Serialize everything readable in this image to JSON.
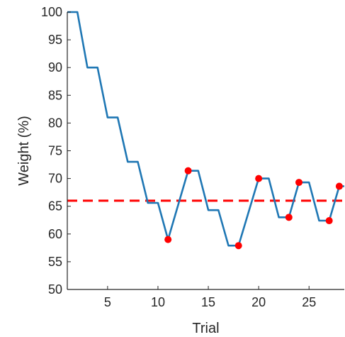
{
  "chart_data": {
    "type": "line",
    "xlabel": "Trial",
    "ylabel": "Weight (%)",
    "xlim": [
      1,
      28.5
    ],
    "ylim": [
      50,
      100
    ],
    "xticks": [
      5,
      10,
      15,
      20,
      25
    ],
    "yticks": [
      50,
      55,
      60,
      65,
      70,
      75,
      80,
      85,
      90,
      95,
      100
    ],
    "grid": false,
    "series": [
      {
        "color": "#1f77b4",
        "style": "solid-step",
        "points": [
          [
            1.0,
            100
          ],
          [
            2.0,
            100
          ],
          [
            3.0,
            90
          ],
          [
            4.0,
            90
          ],
          [
            5.0,
            81
          ],
          [
            6.0,
            81
          ],
          [
            7.0,
            73
          ],
          [
            8.0,
            73
          ],
          [
            9.0,
            65.6
          ],
          [
            10.0,
            65.6
          ],
          [
            11.0,
            59
          ],
          [
            13.0,
            71.4
          ],
          [
            14.0,
            71.4
          ],
          [
            15.0,
            64.3
          ],
          [
            16.0,
            64.3
          ],
          [
            17.0,
            57.9
          ],
          [
            18.0,
            57.9
          ],
          [
            20.0,
            70
          ],
          [
            21.0,
            70
          ],
          [
            22.0,
            63
          ],
          [
            23.0,
            63
          ],
          [
            24.0,
            69.3
          ],
          [
            25.0,
            69.3
          ],
          [
            26.0,
            62.4
          ],
          [
            27.0,
            62.4
          ],
          [
            28.0,
            68.6
          ],
          [
            28.5,
            68.6
          ]
        ]
      }
    ],
    "reversal_points": {
      "color": "#ff0000",
      "points": [
        [
          11,
          59
        ],
        [
          13,
          71.4
        ],
        [
          18,
          57.9
        ],
        [
          20,
          70
        ],
        [
          23,
          63
        ],
        [
          24,
          69.3
        ],
        [
          27,
          62.4
        ],
        [
          28,
          68.6
        ]
      ]
    },
    "threshold_line": {
      "color": "#ff0000",
      "style": "dashed",
      "y": 66
    }
  }
}
